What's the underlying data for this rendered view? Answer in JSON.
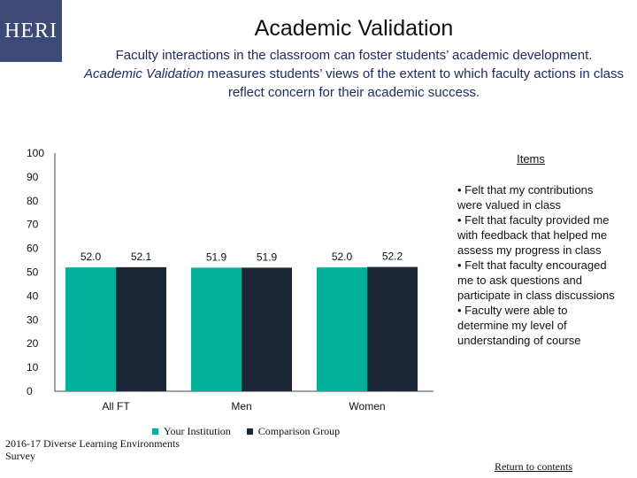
{
  "logo": {
    "text": "HERI"
  },
  "header": {
    "title": "Academic Validation",
    "subtitle_line1": "Faculty interactions in the classroom can foster students’ academic development.",
    "subtitle_italic": "Academic Validation",
    "subtitle_rest": " measures students’ views of the extent to which faculty actions in class reflect concern for their academic success."
  },
  "colors": {
    "your_institution": "#00b09a",
    "comparison_group": "#1b2637"
  },
  "chart_data": {
    "type": "bar",
    "categories": [
      "All FT",
      "Men",
      "Women"
    ],
    "series": [
      {
        "name": "Your Institution",
        "values": [
          52.0,
          51.9,
          52.0
        ],
        "labels": [
          "52.0",
          "51.9",
          "52.0"
        ]
      },
      {
        "name": "Comparison Group",
        "values": [
          52.1,
          51.9,
          52.2
        ],
        "labels": [
          "52.1",
          "51.9",
          "52.2"
        ]
      }
    ],
    "ylim": [
      0,
      100
    ],
    "yticks": [
      0,
      10,
      20,
      30,
      40,
      50,
      60,
      70,
      80,
      90,
      100
    ],
    "legend_position": "bottom"
  },
  "items": {
    "heading": "Items",
    "list": [
      "Felt that my contributions were valued in class",
      "Felt that faculty provided me with feedback that helped me assess my progress in class",
      "Felt that faculty encouraged me to ask questions and participate in class discussions",
      "Faculty were able to determine my level of understanding of course"
    ]
  },
  "legend": {
    "your_institution": "Your Institution",
    "comparison_group": "Comparison Group"
  },
  "source": "2016-17 Diverse Learning Environments Survey",
  "nav": {
    "return_link": "Return to contents"
  }
}
